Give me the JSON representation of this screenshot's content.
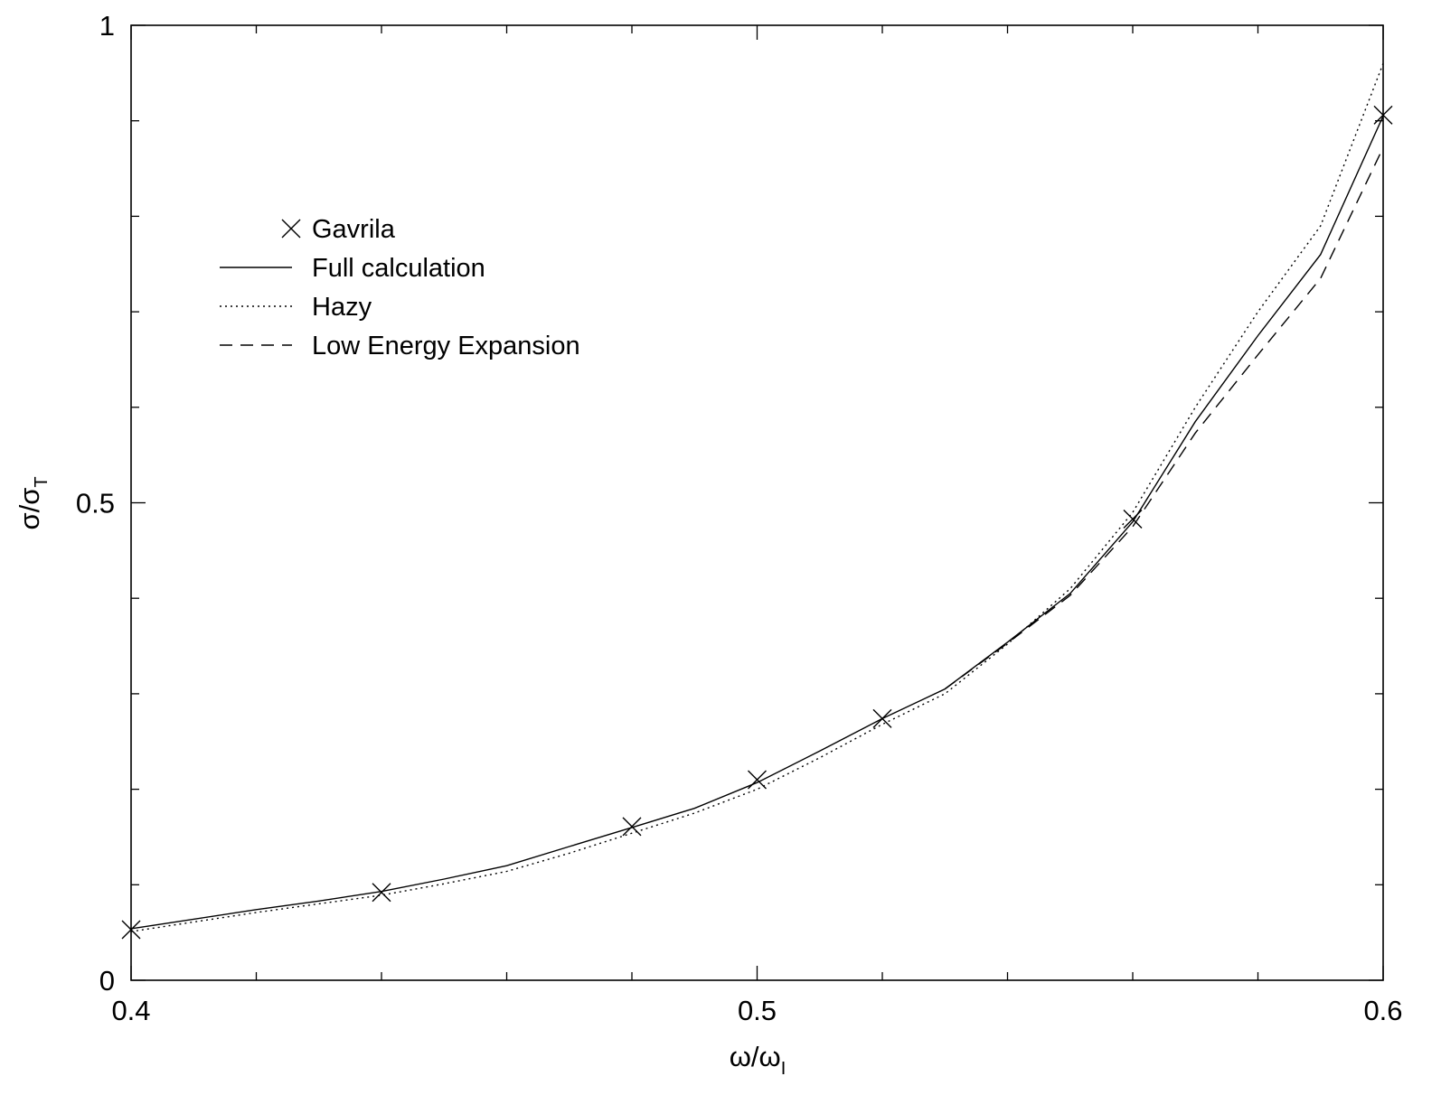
{
  "chart_data": {
    "type": "line",
    "title": "",
    "xlabel": {
      "main": "ω/ω",
      "sub": "I"
    },
    "ylabel": {
      "main": "σ/σ",
      "sub": "T"
    },
    "xlim": [
      0.4,
      0.6
    ],
    "ylim": [
      0,
      1
    ],
    "x_ticks_major": [
      0.4,
      0.5,
      0.6
    ],
    "x_ticks_minor": [
      0.42,
      0.44,
      0.46,
      0.48,
      0.52,
      0.54,
      0.56,
      0.58
    ],
    "y_ticks_major": [
      0,
      0.5,
      1
    ],
    "y_ticks_minor": [
      0.1,
      0.2,
      0.3,
      0.4,
      0.6,
      0.7,
      0.8,
      0.9
    ],
    "x_tick_labels": [
      "0.4",
      "0.5",
      "0.6"
    ],
    "y_tick_labels": [
      "0",
      "0.5",
      "1"
    ],
    "grid": false,
    "legend_position": "upper-left",
    "series": [
      {
        "name": "Gavrila",
        "style": "markers-x",
        "x": [
          0.4,
          0.44,
          0.48,
          0.5,
          0.52,
          0.56,
          0.6
        ],
        "y": [
          0.053,
          0.092,
          0.161,
          0.21,
          0.274,
          0.483,
          0.906
        ]
      },
      {
        "name": "Full calculation",
        "style": "solid",
        "x": [
          0.4,
          0.41,
          0.42,
          0.43,
          0.44,
          0.45,
          0.46,
          0.47,
          0.48,
          0.49,
          0.5,
          0.51,
          0.52,
          0.53,
          0.54,
          0.55,
          0.56,
          0.57,
          0.58,
          0.59,
          0.6
        ],
        "y": [
          0.054,
          0.064,
          0.074,
          0.083,
          0.093,
          0.106,
          0.12,
          0.14,
          0.16,
          0.18,
          0.207,
          0.24,
          0.274,
          0.305,
          0.354,
          0.405,
          0.48,
          0.585,
          0.675,
          0.76,
          0.905
        ]
      },
      {
        "name": "Hazy",
        "style": "dotted",
        "x": [
          0.4,
          0.41,
          0.42,
          0.43,
          0.44,
          0.45,
          0.46,
          0.47,
          0.48,
          0.49,
          0.5,
          0.51,
          0.52,
          0.53,
          0.54,
          0.55,
          0.56,
          0.57,
          0.58,
          0.59,
          0.6
        ],
        "y": [
          0.051,
          0.061,
          0.071,
          0.08,
          0.089,
          0.101,
          0.114,
          0.133,
          0.154,
          0.175,
          0.2,
          0.233,
          0.268,
          0.3,
          0.352,
          0.41,
          0.49,
          0.6,
          0.7,
          0.79,
          0.96
        ]
      },
      {
        "name": "Low Energy Expansion",
        "style": "dashed",
        "x": [
          0.53,
          0.54,
          0.55,
          0.56,
          0.57,
          0.58,
          0.59,
          0.6
        ],
        "y": [
          0.305,
          0.353,
          0.403,
          0.475,
          0.573,
          0.655,
          0.735,
          0.872
        ]
      }
    ]
  },
  "colors": {
    "background": "#ffffff",
    "ink": "#000000"
  }
}
